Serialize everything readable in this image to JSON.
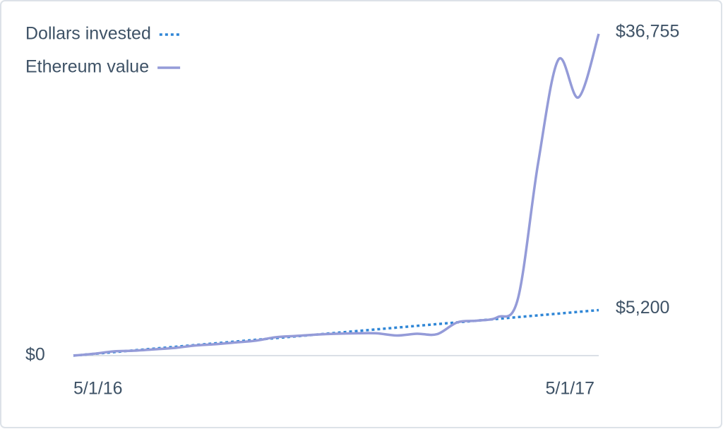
{
  "chart_data": {
    "type": "line",
    "categories": [
      "5/1/16",
      null,
      null,
      null,
      null,
      null,
      null,
      null,
      null,
      null,
      null,
      null,
      null,
      null,
      null,
      null,
      null,
      null,
      null,
      null,
      null,
      null,
      null,
      null,
      null,
      null,
      "5/1/17"
    ],
    "series": [
      {
        "name": "Dollars invested",
        "color": "#2f86d6",
        "dash": "dotted",
        "values": [
          0,
          200,
          400,
          600,
          800,
          1000,
          1200,
          1400,
          1600,
          1800,
          2000,
          2200,
          2400,
          2600,
          2800,
          3000,
          3200,
          3400,
          3600,
          3800,
          4000,
          4200,
          4400,
          4600,
          4800,
          5000,
          5200
        ],
        "value_labels": [
          null,
          null,
          null,
          null,
          null,
          null,
          null,
          null,
          null,
          null,
          null,
          null,
          null,
          null,
          null,
          null,
          null,
          null,
          null,
          null,
          null,
          null,
          null,
          null,
          null,
          null,
          "$5,200"
        ]
      },
      {
        "name": "Ethereum value",
        "color": "#949bd8",
        "dash": "solid",
        "values": [
          0,
          210,
          480,
          560,
          720,
          880,
          1150,
          1300,
          1500,
          1700,
          2100,
          2250,
          2400,
          2500,
          2550,
          2550,
          2300,
          2500,
          2450,
          3800,
          4000,
          4400,
          6500,
          22000,
          33800,
          29500,
          36755
        ],
        "value_labels": [
          null,
          null,
          null,
          null,
          null,
          null,
          null,
          null,
          null,
          null,
          null,
          null,
          null,
          null,
          null,
          null,
          null,
          null,
          null,
          null,
          null,
          null,
          null,
          null,
          null,
          null,
          "$36,755"
        ]
      }
    ],
    "ylim": [
      0,
      36755
    ],
    "yticks": [
      {
        "value": 0,
        "label": "$0"
      }
    ],
    "legend": "top-left"
  }
}
